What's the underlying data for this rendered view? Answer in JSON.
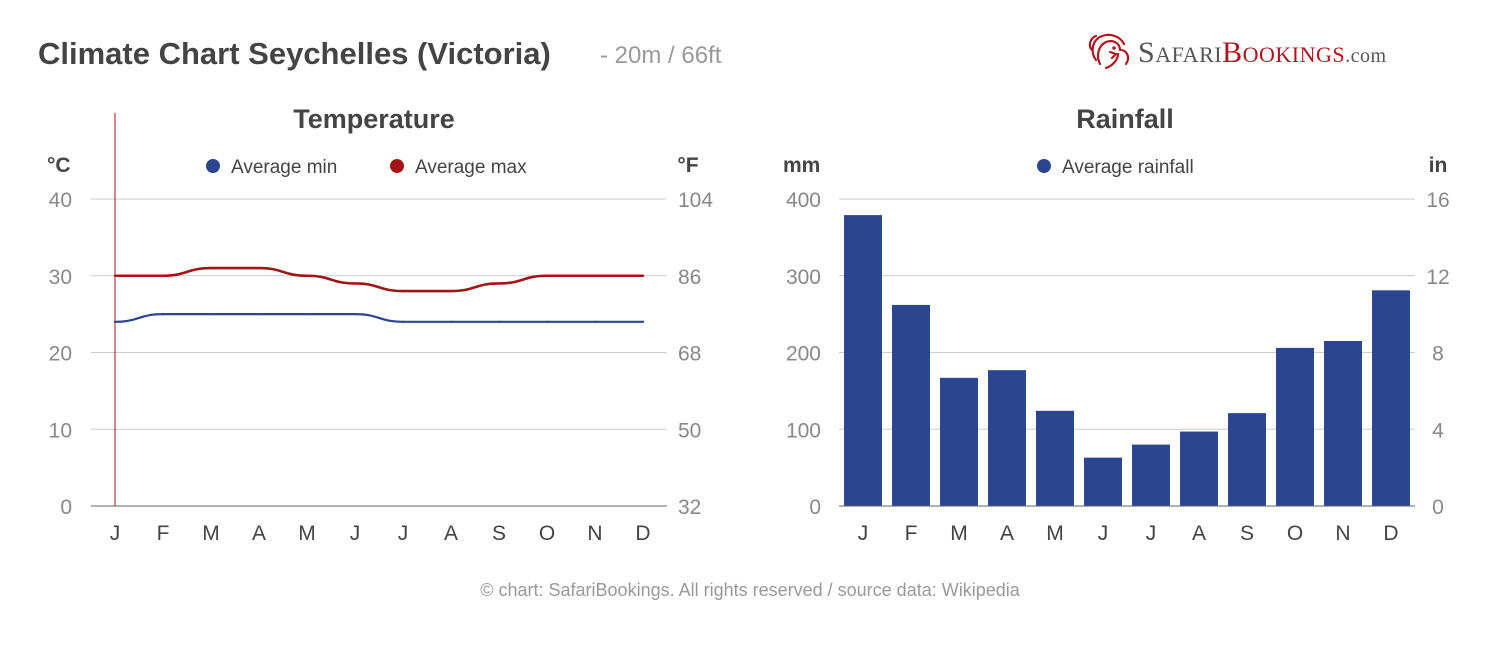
{
  "header": {
    "title": "Climate Chart Seychelles (Victoria)",
    "subtitle": "- 20m / 66ft"
  },
  "logo": {
    "part1_big": "S",
    "part1_small": "AFARI",
    "part2_big": "B",
    "part2_small": "OOKINGS",
    "suffix": ".com",
    "icon": "lion-head-icon"
  },
  "footer": {
    "credit": "© chart: SafariBookings. All rights reserved / source data: Wikipedia"
  },
  "colors": {
    "min": "#2b4590",
    "max": "#a31515",
    "bar": "#2b4590",
    "grid": "#cccccc",
    "axis_text": "#888888",
    "label_text": "#444444",
    "brand_red": "#b0151e"
  },
  "chart_data": [
    {
      "type": "line",
      "title": "Temperature",
      "ylabel_left": "°C",
      "ylabel_right": "°F",
      "categories": [
        "J",
        "F",
        "M",
        "A",
        "M",
        "J",
        "J",
        "A",
        "S",
        "O",
        "N",
        "D"
      ],
      "ylim": [
        0,
        40
      ],
      "yticks_left": [
        "0",
        "10",
        "20",
        "30",
        "40"
      ],
      "yticks_right": [
        "32",
        "50",
        "68",
        "86",
        "104"
      ],
      "series": [
        {
          "name": "Average min",
          "color": "#2b4590",
          "values": [
            24,
            25,
            25,
            25,
            25,
            25,
            24,
            24,
            24,
            24,
            24,
            24
          ]
        },
        {
          "name": "Average max",
          "color": "#a31515",
          "values": [
            30,
            30,
            31,
            31,
            30,
            29,
            28,
            28,
            29,
            30,
            30,
            30
          ]
        }
      ],
      "grid": true,
      "legend": "top"
    },
    {
      "type": "bar",
      "title": "Rainfall",
      "ylabel_left": "mm",
      "ylabel_right": "in",
      "categories": [
        "J",
        "F",
        "M",
        "A",
        "M",
        "J",
        "J",
        "A",
        "S",
        "O",
        "N",
        "D"
      ],
      "ylim": [
        0,
        400
      ],
      "yticks_left": [
        "0",
        "100",
        "200",
        "300",
        "400"
      ],
      "yticks_right": [
        "0",
        "4",
        "8",
        "12",
        "16"
      ],
      "series": [
        {
          "name": "Average rainfall",
          "color": "#2b4590",
          "values": [
            379,
            262,
            167,
            177,
            124,
            63,
            80,
            97,
            121,
            206,
            215,
            281
          ]
        }
      ],
      "grid": true,
      "legend": "top"
    }
  ]
}
